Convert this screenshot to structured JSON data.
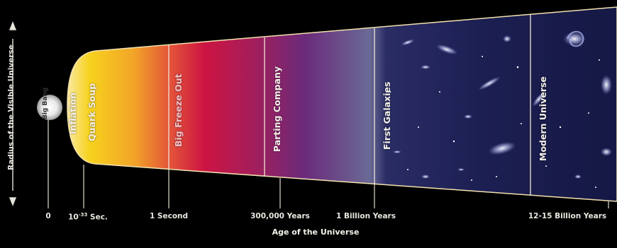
{
  "y_axis": {
    "title": "Radius of the Visible Universe"
  },
  "x_axis": {
    "title": "Age of the Universe",
    "ticks": [
      {
        "id": "zero",
        "label": "0"
      },
      {
        "id": "sec",
        "label_main": "10",
        "label_sup": "-33",
        "label_tail": " Sec."
      },
      {
        "id": "second",
        "label": "1 Second"
      },
      {
        "id": "years300k",
        "label": "300,000 Years"
      },
      {
        "id": "billion",
        "label": "1 Billion Years"
      },
      {
        "id": "modern",
        "label": "12-15 Billion Years"
      }
    ]
  },
  "eras": {
    "big_bang": "Big Bang",
    "inflation": "Inflation",
    "quark_soup": "Quark Soup",
    "big_freeze_out": "Big Freeze Out",
    "parting_company": "Parting Company",
    "first_galaxies": "First Galaxies",
    "modern_universe": "Modern Universe"
  },
  "colors": {
    "background": "#000000",
    "quark": "#f7d21e",
    "orange": "#ef7a22",
    "red": "#d2143c",
    "crimson": "#a31e5c",
    "purple": "#5a2a78",
    "space": "#1a1d4a",
    "text": "#f4f1ea"
  }
}
